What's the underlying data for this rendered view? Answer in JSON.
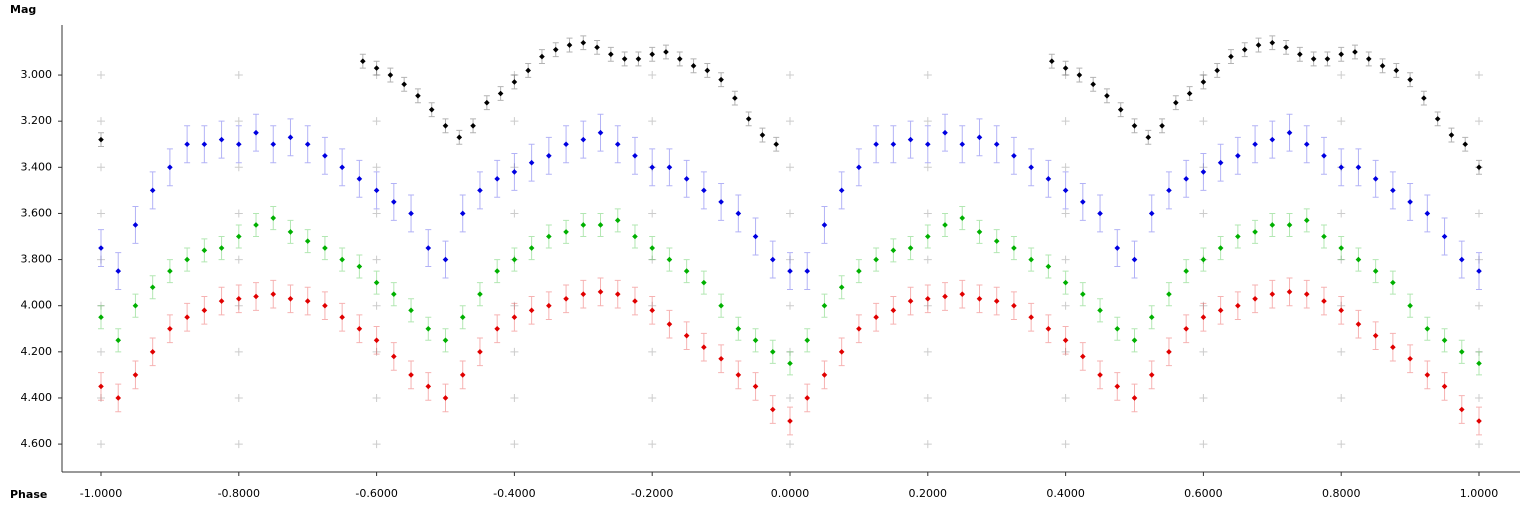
{
  "chart_data": {
    "type": "scatter",
    "y_label": "Mag",
    "x_label": "Phase",
    "xlim": [
      -1.0566,
      1.0595
    ],
    "ylim": [
      2.783,
      4.721
    ],
    "y_inverted": true,
    "grid": "plus",
    "xticks": [
      {
        "value": -1,
        "label": "-1.0000"
      },
      {
        "value": -0.8,
        "label": "-0.8000"
      },
      {
        "value": -0.6,
        "label": "-0.6000"
      },
      {
        "value": -0.4,
        "label": "-0.4000"
      },
      {
        "value": -0.2,
        "label": "-0.2000"
      },
      {
        "value": 0,
        "label": "0.0000"
      },
      {
        "value": 0.2,
        "label": "0.2000"
      },
      {
        "value": 0.4,
        "label": "0.4000"
      },
      {
        "value": 0.6,
        "label": "0.6000"
      },
      {
        "value": 0.8,
        "label": "0.8000"
      },
      {
        "value": 1,
        "label": "1.0000"
      }
    ],
    "yticks": [
      {
        "value": 3,
        "label": "3.000"
      },
      {
        "value": 3.2,
        "label": "3.200"
      },
      {
        "value": 3.4,
        "label": "3.400"
      },
      {
        "value": 3.6,
        "label": "3.600"
      },
      {
        "value": 3.8,
        "label": "3.800"
      },
      {
        "value": 4,
        "label": "4.000"
      },
      {
        "value": 4.2,
        "label": "4.200"
      },
      {
        "value": 4.4,
        "label": "4.400"
      },
      {
        "value": 4.6,
        "label": "4.600"
      }
    ],
    "series": [
      {
        "color": "#e00000",
        "error": 0.06,
        "x": [
          -1,
          -0.975,
          -0.95,
          -0.925,
          -0.9,
          -0.875,
          -0.85,
          -0.825,
          -0.8,
          -0.775,
          -0.75,
          -0.725,
          -0.7,
          -0.675,
          -0.65,
          -0.625,
          -0.6,
          -0.575,
          -0.55,
          -0.525,
          -0.5,
          -0.475,
          -0.45,
          -0.425,
          -0.4,
          -0.375,
          -0.35,
          -0.325,
          -0.3,
          -0.275,
          -0.25,
          -0.225,
          -0.2,
          -0.175,
          -0.15,
          -0.125,
          -0.1,
          -0.075,
          -0.05,
          -0.025,
          0,
          0.025,
          0.05,
          0.075,
          0.1,
          0.125,
          0.15,
          0.175,
          0.2,
          0.225,
          0.25,
          0.275,
          0.3,
          0.325,
          0.35,
          0.375,
          0.4,
          0.425,
          0.45,
          0.475,
          0.5,
          0.525,
          0.55,
          0.575,
          0.6,
          0.625,
          0.65,
          0.675,
          0.7,
          0.725,
          0.75,
          0.775,
          0.8,
          0.825,
          0.85,
          0.875,
          0.9,
          0.925,
          0.95,
          0.975,
          1
        ],
        "values": [
          4.35,
          4.4,
          4.3,
          4.2,
          4.1,
          4.05,
          4.02,
          3.98,
          3.97,
          3.96,
          3.95,
          3.97,
          3.98,
          4.0,
          4.05,
          4.1,
          4.15,
          4.22,
          4.3,
          4.35,
          4.4,
          4.3,
          4.2,
          4.1,
          4.05,
          4.02,
          4.0,
          3.97,
          3.95,
          3.94,
          3.95,
          3.98,
          4.02,
          4.08,
          4.13,
          4.18,
          4.23,
          4.3,
          4.35,
          4.45,
          4.5,
          4.4,
          4.3,
          4.2,
          4.1,
          4.05,
          4.02,
          3.98,
          3.97,
          3.96,
          3.95,
          3.97,
          3.98,
          4.0,
          4.05,
          4.1,
          4.15,
          4.22,
          4.3,
          4.35,
          4.4,
          4.3,
          4.2,
          4.1,
          4.05,
          4.02,
          4.0,
          3.97,
          3.95,
          3.94,
          3.95,
          3.98,
          4.02,
          4.08,
          4.13,
          4.18,
          4.23,
          4.3,
          4.35,
          4.45,
          4.5
        ]
      },
      {
        "color": "#00b000",
        "error": 0.05,
        "x": [
          -1,
          -0.975,
          -0.95,
          -0.925,
          -0.9,
          -0.875,
          -0.85,
          -0.825,
          -0.8,
          -0.775,
          -0.75,
          -0.725,
          -0.7,
          -0.675,
          -0.65,
          -0.625,
          -0.6,
          -0.575,
          -0.55,
          -0.525,
          -0.5,
          -0.475,
          -0.45,
          -0.425,
          -0.4,
          -0.375,
          -0.35,
          -0.325,
          -0.3,
          -0.275,
          -0.25,
          -0.225,
          -0.2,
          -0.175,
          -0.15,
          -0.125,
          -0.1,
          -0.075,
          -0.05,
          -0.025,
          0,
          0.025,
          0.05,
          0.075,
          0.1,
          0.125,
          0.15,
          0.175,
          0.2,
          0.225,
          0.25,
          0.275,
          0.3,
          0.325,
          0.35,
          0.375,
          0.4,
          0.425,
          0.45,
          0.475,
          0.5,
          0.525,
          0.55,
          0.575,
          0.6,
          0.625,
          0.65,
          0.675,
          0.7,
          0.725,
          0.75,
          0.775,
          0.8,
          0.825,
          0.85,
          0.875,
          0.9,
          0.925,
          0.95,
          0.975,
          1
        ],
        "values": [
          4.05,
          4.15,
          4.0,
          3.92,
          3.85,
          3.8,
          3.76,
          3.75,
          3.7,
          3.65,
          3.62,
          3.68,
          3.72,
          3.75,
          3.8,
          3.83,
          3.9,
          3.95,
          4.02,
          4.1,
          4.15,
          4.05,
          3.95,
          3.85,
          3.8,
          3.75,
          3.7,
          3.68,
          3.65,
          3.65,
          3.63,
          3.7,
          3.75,
          3.8,
          3.85,
          3.9,
          4.0,
          4.1,
          4.15,
          4.2,
          4.25,
          4.15,
          4.0,
          3.92,
          3.85,
          3.8,
          3.76,
          3.75,
          3.7,
          3.65,
          3.62,
          3.68,
          3.72,
          3.75,
          3.8,
          3.83,
          3.9,
          3.95,
          4.02,
          4.1,
          4.15,
          4.05,
          3.95,
          3.85,
          3.8,
          3.75,
          3.7,
          3.68,
          3.65,
          3.65,
          3.63,
          3.7,
          3.75,
          3.8,
          3.85,
          3.9,
          4.0,
          4.1,
          4.15,
          4.2,
          4.25
        ]
      },
      {
        "color": "#0000e0",
        "error": 0.08,
        "x": [
          -1,
          -0.975,
          -0.95,
          -0.925,
          -0.9,
          -0.875,
          -0.85,
          -0.825,
          -0.8,
          -0.775,
          -0.75,
          -0.725,
          -0.7,
          -0.675,
          -0.65,
          -0.625,
          -0.6,
          -0.575,
          -0.55,
          -0.525,
          -0.5,
          -0.475,
          -0.45,
          -0.425,
          -0.4,
          -0.375,
          -0.35,
          -0.325,
          -0.3,
          -0.275,
          -0.25,
          -0.225,
          -0.2,
          -0.175,
          -0.15,
          -0.125,
          -0.1,
          -0.075,
          -0.05,
          -0.025,
          0,
          0.025,
          0.05,
          0.075,
          0.1,
          0.125,
          0.15,
          0.175,
          0.2,
          0.225,
          0.25,
          0.275,
          0.3,
          0.325,
          0.35,
          0.375,
          0.4,
          0.425,
          0.45,
          0.475,
          0.5,
          0.525,
          0.55,
          0.575,
          0.6,
          0.625,
          0.65,
          0.675,
          0.7,
          0.725,
          0.75,
          0.775,
          0.8,
          0.825,
          0.85,
          0.875,
          0.9,
          0.925,
          0.95,
          0.975,
          1
        ],
        "values": [
          3.75,
          3.85,
          3.65,
          3.5,
          3.4,
          3.3,
          3.3,
          3.28,
          3.3,
          3.25,
          3.3,
          3.27,
          3.3,
          3.35,
          3.4,
          3.45,
          3.5,
          3.55,
          3.6,
          3.75,
          3.8,
          3.6,
          3.5,
          3.45,
          3.42,
          3.38,
          3.35,
          3.3,
          3.28,
          3.25,
          3.3,
          3.35,
          3.4,
          3.4,
          3.45,
          3.5,
          3.55,
          3.6,
          3.7,
          3.8,
          3.85,
          3.85,
          3.65,
          3.5,
          3.4,
          3.3,
          3.3,
          3.28,
          3.3,
          3.25,
          3.3,
          3.27,
          3.3,
          3.35,
          3.4,
          3.45,
          3.5,
          3.55,
          3.6,
          3.75,
          3.8,
          3.6,
          3.5,
          3.45,
          3.42,
          3.38,
          3.35,
          3.3,
          3.28,
          3.25,
          3.3,
          3.35,
          3.4,
          3.4,
          3.45,
          3.5,
          3.55,
          3.6,
          3.7,
          3.8,
          3.85
        ]
      },
      {
        "color": "#000000",
        "error": 0.03,
        "x": [
          -1,
          -0.62,
          -0.6,
          -0.58,
          -0.56,
          -0.54,
          -0.52,
          -0.5,
          -0.48,
          -0.46,
          -0.44,
          -0.42,
          -0.4,
          -0.38,
          -0.36,
          -0.34,
          -0.32,
          -0.3,
          -0.28,
          -0.26,
          -0.24,
          -0.22,
          -0.2,
          -0.18,
          -0.16,
          -0.14,
          -0.12,
          -0.1,
          -0.08,
          -0.06,
          -0.04,
          -0.02,
          0.38,
          0.4,
          0.42,
          0.44,
          0.46,
          0.48,
          0.5,
          0.52,
          0.54,
          0.56,
          0.58,
          0.6,
          0.62,
          0.64,
          0.66,
          0.68,
          0.7,
          0.72,
          0.74,
          0.76,
          0.78,
          0.8,
          0.82,
          0.84,
          0.86,
          0.88,
          0.9,
          0.92,
          0.94,
          0.96,
          0.98,
          1
        ],
        "values": [
          3.28,
          2.94,
          2.97,
          3.0,
          3.04,
          3.09,
          3.15,
          3.22,
          3.27,
          3.22,
          3.12,
          3.08,
          3.03,
          2.98,
          2.92,
          2.89,
          2.87,
          2.86,
          2.88,
          2.91,
          2.93,
          2.93,
          2.91,
          2.9,
          2.93,
          2.96,
          2.98,
          3.02,
          3.1,
          3.19,
          3.26,
          3.3,
          2.94,
          2.97,
          3.0,
          3.04,
          3.09,
          3.15,
          3.22,
          3.27,
          3.22,
          3.12,
          3.08,
          3.03,
          2.98,
          2.92,
          2.89,
          2.87,
          2.86,
          2.88,
          2.91,
          2.93,
          2.93,
          2.91,
          2.9,
          2.93,
          2.96,
          2.98,
          3.02,
          3.1,
          3.19,
          3.26,
          3.3,
          3.4
        ]
      }
    ]
  }
}
